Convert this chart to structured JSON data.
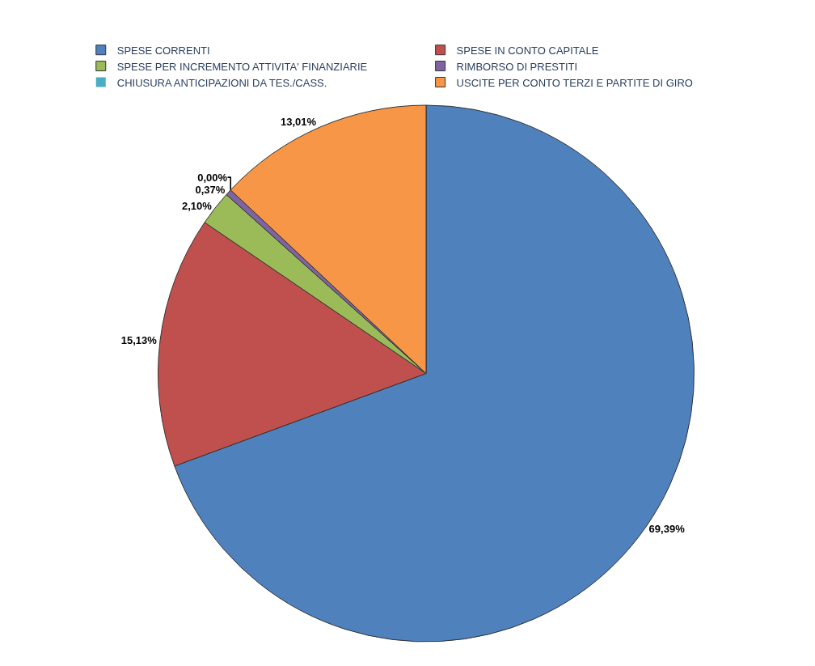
{
  "chart_data": {
    "type": "pie",
    "categories": [
      "SPESE CORRENTI",
      "SPESE IN CONTO CAPITALE",
      "SPESE PER INCREMENTO ATTIVITA' FINANZIARIE",
      "RIMBORSO DI PRESTITI",
      "CHIUSURA ANTICIPAZIONI DA TES./CASS.",
      "USCITE PER CONTO TERZI E PARTITE DI GIRO"
    ],
    "values": [
      69.39,
      15.13,
      2.1,
      0.37,
      0.0,
      13.01
    ],
    "value_labels": [
      "69,39%",
      "15,13%",
      "2,10%",
      "0,37%",
      "0,00%",
      "13,01%"
    ],
    "colors": [
      "#4f81bd",
      "#c0504d",
      "#9bbb59",
      "#8064a2",
      "#4bacc6",
      "#f79646"
    ],
    "legend": "top"
  }
}
